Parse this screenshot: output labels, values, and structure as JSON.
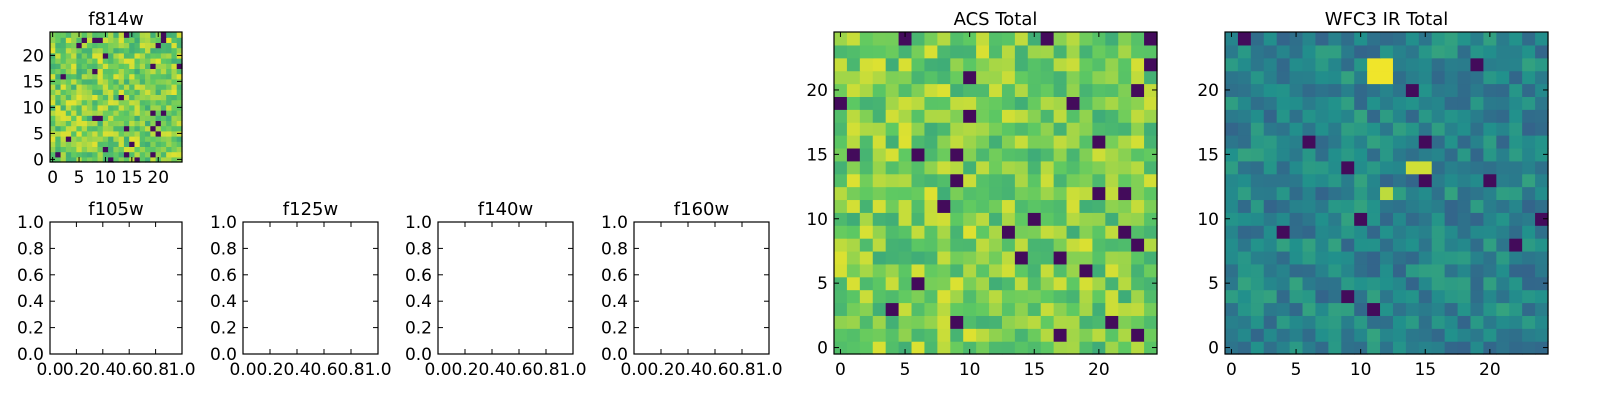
{
  "colormap": [
    "#440154",
    "#3b528b",
    "#21918c",
    "#5ec962",
    "#fde725"
  ],
  "background": "#ffffff",
  "chart_data": [
    {
      "id": "f814w",
      "type": "heatmap",
      "title": "f814w",
      "grid_size": 25,
      "xlim": [
        0,
        24
      ],
      "ylim": [
        0,
        24
      ],
      "xticks": [
        0,
        5,
        10,
        15,
        20
      ],
      "yticks": [
        0,
        5,
        10,
        15,
        20
      ],
      "xtick_labels": [
        "0",
        "5",
        "10",
        "15",
        "20"
      ],
      "ytick_labels": [
        "0",
        "5",
        "10",
        "15",
        "20"
      ],
      "value_range": [
        0,
        1
      ],
      "value_distribution": {
        "typical_low": 0.62,
        "typical_high": 0.96,
        "dark_fraction": 0.05,
        "dark_value": 0.03,
        "seed": 11
      }
    },
    {
      "id": "f105w",
      "type": "empty",
      "title": "f105w",
      "xlim": [
        0,
        1
      ],
      "ylim": [
        0,
        1
      ],
      "xticks": [
        0,
        0.2,
        0.4,
        0.6,
        0.8,
        1.0
      ],
      "yticks": [
        0,
        0.2,
        0.4,
        0.6,
        0.8,
        1.0
      ],
      "xtick_labels": [
        "0.0",
        "0.2",
        "0.4",
        "0.6",
        "0.8",
        "1.0"
      ],
      "ytick_labels": [
        "0.0",
        "0.2",
        "0.4",
        "0.6",
        "0.8",
        "1.0"
      ]
    },
    {
      "id": "f125w",
      "type": "empty",
      "title": "f125w",
      "xlim": [
        0,
        1
      ],
      "ylim": [
        0,
        1
      ],
      "xticks": [
        0,
        0.2,
        0.4,
        0.6,
        0.8,
        1.0
      ],
      "yticks": [
        0,
        0.2,
        0.4,
        0.6,
        0.8,
        1.0
      ],
      "xtick_labels": [
        "0.0",
        "0.2",
        "0.4",
        "0.6",
        "0.8",
        "1.0"
      ],
      "ytick_labels": [
        "0.0",
        "0.2",
        "0.4",
        "0.6",
        "0.8",
        "1.0"
      ]
    },
    {
      "id": "f140w",
      "type": "empty",
      "title": "f140w",
      "xlim": [
        0,
        1
      ],
      "ylim": [
        0,
        1
      ],
      "xticks": [
        0,
        0.2,
        0.4,
        0.6,
        0.8,
        1.0
      ],
      "yticks": [
        0,
        0.2,
        0.4,
        0.6,
        0.8,
        1.0
      ],
      "xtick_labels": [
        "0.0",
        "0.2",
        "0.4",
        "0.6",
        "0.8",
        "1.0"
      ],
      "ytick_labels": [
        "0.0",
        "0.2",
        "0.4",
        "0.6",
        "0.8",
        "1.0"
      ]
    },
    {
      "id": "f160w",
      "type": "empty",
      "title": "f160w",
      "xlim": [
        0,
        1
      ],
      "ylim": [
        0,
        1
      ],
      "xticks": [
        0,
        0.2,
        0.4,
        0.6,
        0.8,
        1.0
      ],
      "yticks": [
        0,
        0.2,
        0.4,
        0.6,
        0.8,
        1.0
      ],
      "xtick_labels": [
        "0.0",
        "0.2",
        "0.4",
        "0.6",
        "0.8",
        "1.0"
      ],
      "ytick_labels": [
        "0.0",
        "0.2",
        "0.4",
        "0.6",
        "0.8",
        "1.0"
      ]
    },
    {
      "id": "acs-total",
      "type": "heatmap",
      "title": "ACS Total",
      "grid_size": 25,
      "xlim": [
        0,
        24
      ],
      "ylim": [
        0,
        24
      ],
      "xticks": [
        0,
        5,
        10,
        15,
        20
      ],
      "yticks": [
        0,
        5,
        10,
        15,
        20
      ],
      "xtick_labels": [
        "0",
        "5",
        "10",
        "15",
        "20"
      ],
      "ytick_labels": [
        "0",
        "5",
        "10",
        "15",
        "20"
      ],
      "value_range": [
        0,
        1
      ],
      "value_distribution": {
        "typical_low": 0.62,
        "typical_high": 0.95,
        "dark_fraction": 0.04,
        "dark_value": 0.03,
        "seed": 27
      }
    },
    {
      "id": "wfc3-ir-total",
      "type": "heatmap",
      "title": "WFC3 IR Total",
      "grid_size": 25,
      "xlim": [
        0,
        24
      ],
      "ylim": [
        0,
        24
      ],
      "xticks": [
        0,
        5,
        10,
        15,
        20
      ],
      "yticks": [
        0,
        5,
        10,
        15,
        20
      ],
      "xtick_labels": [
        "0",
        "5",
        "10",
        "15",
        "20"
      ],
      "ytick_labels": [
        "0",
        "5",
        "10",
        "15",
        "20"
      ],
      "value_range": [
        0,
        1
      ],
      "value_distribution": {
        "typical_low": 0.32,
        "typical_high": 0.58,
        "dark_fraction": 0.03,
        "dark_value": 0.03,
        "seed": 53
      },
      "hotspots": [
        {
          "x": 11,
          "y": 22,
          "value": 0.98
        },
        {
          "x": 12,
          "y": 22,
          "value": 0.98
        },
        {
          "x": 11,
          "y": 21,
          "value": 0.98
        },
        {
          "x": 12,
          "y": 21,
          "value": 0.98
        },
        {
          "x": 14,
          "y": 14,
          "value": 0.93
        },
        {
          "x": 15,
          "y": 14,
          "value": 0.93
        },
        {
          "x": 12,
          "y": 12,
          "value": 0.9
        }
      ]
    }
  ]
}
